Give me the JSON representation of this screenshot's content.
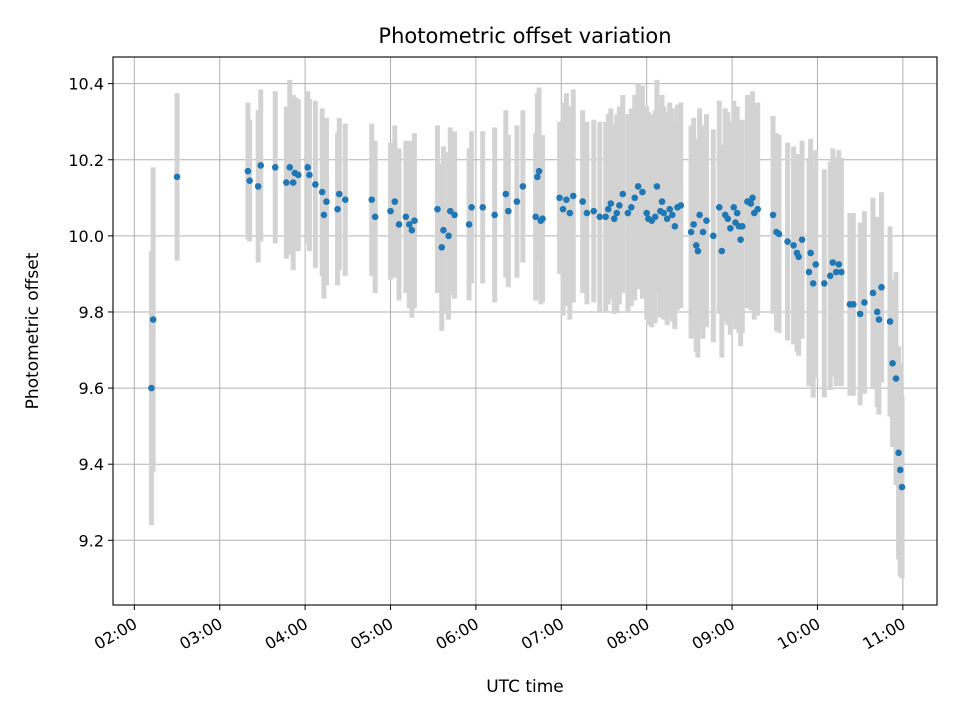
{
  "chart_data": {
    "type": "scatter",
    "title": "Photometric offset variation",
    "xlabel": "UTC time",
    "ylabel": "Photometric offset",
    "x_unit": "hours UTC",
    "xlim": [
      1.75,
      11.4
    ],
    "ylim": [
      9.03,
      10.47
    ],
    "grid": true,
    "x_ticks": [
      {
        "value": 2,
        "label": "02:00"
      },
      {
        "value": 3,
        "label": "03:00"
      },
      {
        "value": 4,
        "label": "04:00"
      },
      {
        "value": 5,
        "label": "05:00"
      },
      {
        "value": 6,
        "label": "06:00"
      },
      {
        "value": 7,
        "label": "07:00"
      },
      {
        "value": 8,
        "label": "08:00"
      },
      {
        "value": 9,
        "label": "09:00"
      },
      {
        "value": 10,
        "label": "10:00"
      },
      {
        "value": 11,
        "label": "11:00"
      }
    ],
    "y_ticks": [
      {
        "value": 9.2,
        "label": "9.2"
      },
      {
        "value": 9.4,
        "label": "9.4"
      },
      {
        "value": 9.6,
        "label": "9.6"
      },
      {
        "value": 9.8,
        "label": "9.8"
      },
      {
        "value": 10.0,
        "label": "10.0"
      },
      {
        "value": 10.2,
        "label": "10.2"
      },
      {
        "value": 10.4,
        "label": "10.4"
      }
    ],
    "colors": {
      "point": "#1f77b4",
      "errorbar": "#d3d3d3",
      "grid": "#b0b0b0"
    },
    "points": [
      [
        2.2,
        9.6,
        0.36
      ],
      [
        2.22,
        9.78,
        0.4
      ],
      [
        2.5,
        10.155,
        0.22
      ],
      [
        3.33,
        10.17,
        0.18
      ],
      [
        3.35,
        10.145,
        0.16
      ],
      [
        3.45,
        10.13,
        0.2
      ],
      [
        3.48,
        10.185,
        0.2
      ],
      [
        3.65,
        10.18,
        0.2
      ],
      [
        3.78,
        10.14,
        0.2
      ],
      [
        3.82,
        10.18,
        0.23
      ],
      [
        3.86,
        10.14,
        0.23
      ],
      [
        3.88,
        10.165,
        0.2
      ],
      [
        3.92,
        10.16,
        0.2
      ],
      [
        4.03,
        10.18,
        0.2
      ],
      [
        4.05,
        10.16,
        0.2
      ],
      [
        4.12,
        10.135,
        0.22
      ],
      [
        4.2,
        10.115,
        0.22
      ],
      [
        4.22,
        10.055,
        0.22
      ],
      [
        4.25,
        10.09,
        0.22
      ],
      [
        4.38,
        10.07,
        0.2
      ],
      [
        4.4,
        10.11,
        0.2
      ],
      [
        4.47,
        10.095,
        0.2
      ],
      [
        4.78,
        10.095,
        0.2
      ],
      [
        4.82,
        10.05,
        0.2
      ],
      [
        5.0,
        10.065,
        0.18
      ],
      [
        5.05,
        10.09,
        0.2
      ],
      [
        5.1,
        10.03,
        0.2
      ],
      [
        5.18,
        10.05,
        0.2
      ],
      [
        5.22,
        10.03,
        0.22
      ],
      [
        5.25,
        10.015,
        0.23
      ],
      [
        5.28,
        10.04,
        0.23
      ],
      [
        5.55,
        10.07,
        0.22
      ],
      [
        5.6,
        9.97,
        0.22
      ],
      [
        5.62,
        10.015,
        0.22
      ],
      [
        5.68,
        10.0,
        0.22
      ],
      [
        5.7,
        10.065,
        0.22
      ],
      [
        5.75,
        10.055,
        0.22
      ],
      [
        5.92,
        10.03,
        0.2
      ],
      [
        5.95,
        10.075,
        0.2
      ],
      [
        6.08,
        10.075,
        0.2
      ],
      [
        6.22,
        10.055,
        0.23
      ],
      [
        6.35,
        10.11,
        0.22
      ],
      [
        6.38,
        10.065,
        0.2
      ],
      [
        6.48,
        10.09,
        0.2
      ],
      [
        6.55,
        10.13,
        0.2
      ],
      [
        6.7,
        10.05,
        0.22
      ],
      [
        6.72,
        10.155,
        0.22
      ],
      [
        6.74,
        10.17,
        0.22
      ],
      [
        6.76,
        10.04,
        0.22
      ],
      [
        6.78,
        10.045,
        0.22
      ],
      [
        6.98,
        10.1,
        0.2
      ],
      [
        7.02,
        10.07,
        0.28
      ],
      [
        7.06,
        10.095,
        0.28
      ],
      [
        7.1,
        10.06,
        0.28
      ],
      [
        7.14,
        10.105,
        0.28
      ],
      [
        7.25,
        10.09,
        0.24
      ],
      [
        7.3,
        10.06,
        0.24
      ],
      [
        7.38,
        10.065,
        0.24
      ],
      [
        7.45,
        10.05,
        0.25
      ],
      [
        7.52,
        10.05,
        0.25
      ],
      [
        7.55,
        10.07,
        0.25
      ],
      [
        7.58,
        10.085,
        0.25
      ],
      [
        7.62,
        10.045,
        0.25
      ],
      [
        7.65,
        10.06,
        0.26
      ],
      [
        7.68,
        10.08,
        0.26
      ],
      [
        7.72,
        10.11,
        0.26
      ],
      [
        7.78,
        10.06,
        0.26
      ],
      [
        7.82,
        10.075,
        0.26
      ],
      [
        7.86,
        10.1,
        0.27
      ],
      [
        7.9,
        10.13,
        0.27
      ],
      [
        7.95,
        10.115,
        0.28
      ],
      [
        8.0,
        10.06,
        0.28
      ],
      [
        8.02,
        10.045,
        0.28
      ],
      [
        8.06,
        10.04,
        0.28
      ],
      [
        8.1,
        10.05,
        0.28
      ],
      [
        8.12,
        10.13,
        0.28
      ],
      [
        8.16,
        10.065,
        0.28
      ],
      [
        8.18,
        10.09,
        0.28
      ],
      [
        8.2,
        10.06,
        0.28
      ],
      [
        8.24,
        10.045,
        0.28
      ],
      [
        8.27,
        10.07,
        0.28
      ],
      [
        8.3,
        10.055,
        0.28
      ],
      [
        8.33,
        10.025,
        0.27
      ],
      [
        8.36,
        10.075,
        0.27
      ],
      [
        8.4,
        10.08,
        0.27
      ],
      [
        8.52,
        10.01,
        0.28
      ],
      [
        8.55,
        10.03,
        0.28
      ],
      [
        8.58,
        9.975,
        0.28
      ],
      [
        8.6,
        9.96,
        0.28
      ],
      [
        8.62,
        10.055,
        0.28
      ],
      [
        8.66,
        10.01,
        0.28
      ],
      [
        8.7,
        10.04,
        0.28
      ],
      [
        8.78,
        10.0,
        0.28
      ],
      [
        8.85,
        10.075,
        0.28
      ],
      [
        8.88,
        9.96,
        0.28
      ],
      [
        8.92,
        10.055,
        0.28
      ],
      [
        8.95,
        10.045,
        0.28
      ],
      [
        8.98,
        10.02,
        0.28
      ],
      [
        9.02,
        10.075,
        0.28
      ],
      [
        9.04,
        10.035,
        0.28
      ],
      [
        9.06,
        10.06,
        0.28
      ],
      [
        9.08,
        10.025,
        0.28
      ],
      [
        9.1,
        9.99,
        0.28
      ],
      [
        9.12,
        10.025,
        0.28
      ],
      [
        9.18,
        10.09,
        0.28
      ],
      [
        9.22,
        10.085,
        0.28
      ],
      [
        9.24,
        10.1,
        0.28
      ],
      [
        9.26,
        10.06,
        0.28
      ],
      [
        9.3,
        10.07,
        0.28
      ],
      [
        9.48,
        10.055,
        0.26
      ],
      [
        9.52,
        10.01,
        0.26
      ],
      [
        9.55,
        10.005,
        0.26
      ],
      [
        9.65,
        9.985,
        0.26
      ],
      [
        9.72,
        9.975,
        0.26
      ],
      [
        9.76,
        9.955,
        0.26
      ],
      [
        9.78,
        9.945,
        0.26
      ],
      [
        9.82,
        9.99,
        0.26
      ],
      [
        9.9,
        9.905,
        0.3
      ],
      [
        9.92,
        9.955,
        0.3
      ],
      [
        9.95,
        9.875,
        0.3
      ],
      [
        9.98,
        9.925,
        0.3
      ],
      [
        10.08,
        9.875,
        0.3
      ],
      [
        10.15,
        9.895,
        0.3
      ],
      [
        10.18,
        9.93,
        0.3
      ],
      [
        10.22,
        9.905,
        0.3
      ],
      [
        10.25,
        9.925,
        0.3
      ],
      [
        10.28,
        9.905,
        0.3
      ],
      [
        10.38,
        9.82,
        0.24
      ],
      [
        10.42,
        9.82,
        0.24
      ],
      [
        10.5,
        9.795,
        0.24
      ],
      [
        10.55,
        9.825,
        0.24
      ],
      [
        10.65,
        9.85,
        0.25
      ],
      [
        10.7,
        9.8,
        0.25
      ],
      [
        10.72,
        9.78,
        0.25
      ],
      [
        10.75,
        9.865,
        0.25
      ],
      [
        10.85,
        9.775,
        0.25
      ],
      [
        10.88,
        9.665,
        0.22
      ],
      [
        10.92,
        9.625,
        0.28
      ],
      [
        10.95,
        9.43,
        0.28
      ],
      [
        10.97,
        9.385,
        0.28
      ],
      [
        10.99,
        9.34,
        0.24
      ]
    ]
  }
}
